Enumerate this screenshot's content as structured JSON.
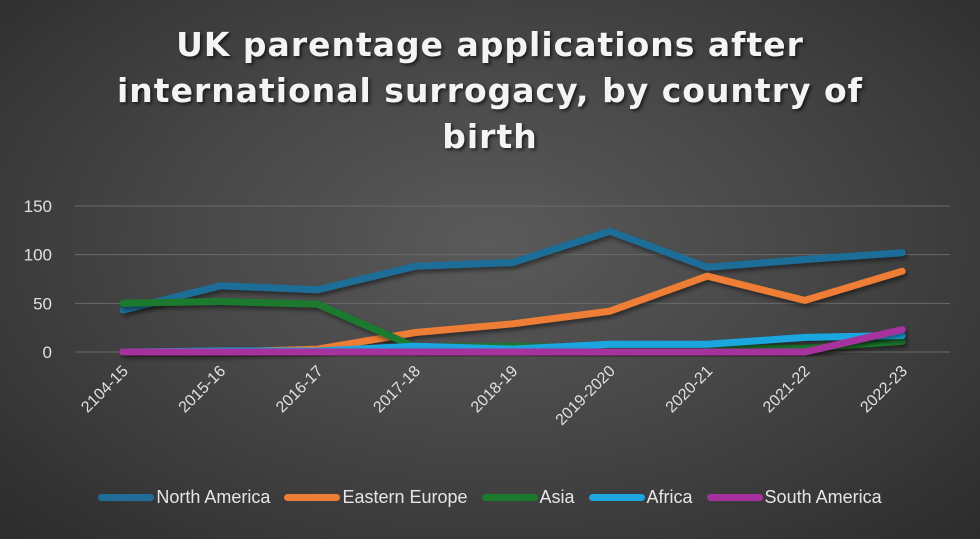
{
  "title": {
    "line1": "UK parentage applications after",
    "line2": "international surrogacy, by country of",
    "line3": "birth"
  },
  "colors": {
    "north_america": "#1f6e99",
    "eastern_europe": "#ee7d35",
    "asia": "#1c7a2e",
    "africa": "#1ea6e0",
    "south_america": "#a6319e",
    "gridline": "#6a6a6a"
  },
  "y_axis": {
    "ticks": [
      "0",
      "50",
      "100",
      "150"
    ]
  },
  "x_axis": {
    "ticks": [
      "2104-15",
      "2015-16",
      "2016-17",
      "2017-18",
      "2018-19",
      "2019-2020",
      "2020-21",
      "2021-22",
      "2022-23"
    ]
  },
  "legend": [
    "North America",
    "Eastern Europe",
    "Asia",
    "Africa",
    "South America"
  ],
  "chart_data": {
    "type": "line",
    "title": "UK parentage applications after international surrogacy, by country of birth",
    "xlabel": "",
    "ylabel": "",
    "ylim": [
      0,
      150
    ],
    "yticks": [
      0,
      50,
      100,
      150
    ],
    "grid": true,
    "legend_position": "bottom",
    "categories": [
      "2104-15",
      "2015-16",
      "2016-17",
      "2017-18",
      "2018-19",
      "2019-2020",
      "2020-21",
      "2021-22",
      "2022-23"
    ],
    "series": [
      {
        "name": "North America",
        "color": "#1f6e99",
        "values": [
          43,
          68,
          64,
          88,
          92,
          124,
          87,
          95,
          102
        ]
      },
      {
        "name": "Eastern Europe",
        "color": "#ee7d35",
        "values": [
          0,
          0,
          3,
          20,
          29,
          42,
          78,
          53,
          83
        ]
      },
      {
        "name": "Asia",
        "color": "#1c7a2e",
        "values": [
          50,
          52,
          49,
          5,
          6,
          4,
          4,
          4,
          11
        ]
      },
      {
        "name": "Africa",
        "color": "#1ea6e0",
        "values": [
          0,
          1,
          1,
          6,
          3,
          8,
          8,
          15,
          17
        ]
      },
      {
        "name": "South America",
        "color": "#a6319e",
        "values": [
          0,
          0,
          0,
          0,
          0,
          0,
          0,
          0,
          23
        ]
      }
    ]
  }
}
